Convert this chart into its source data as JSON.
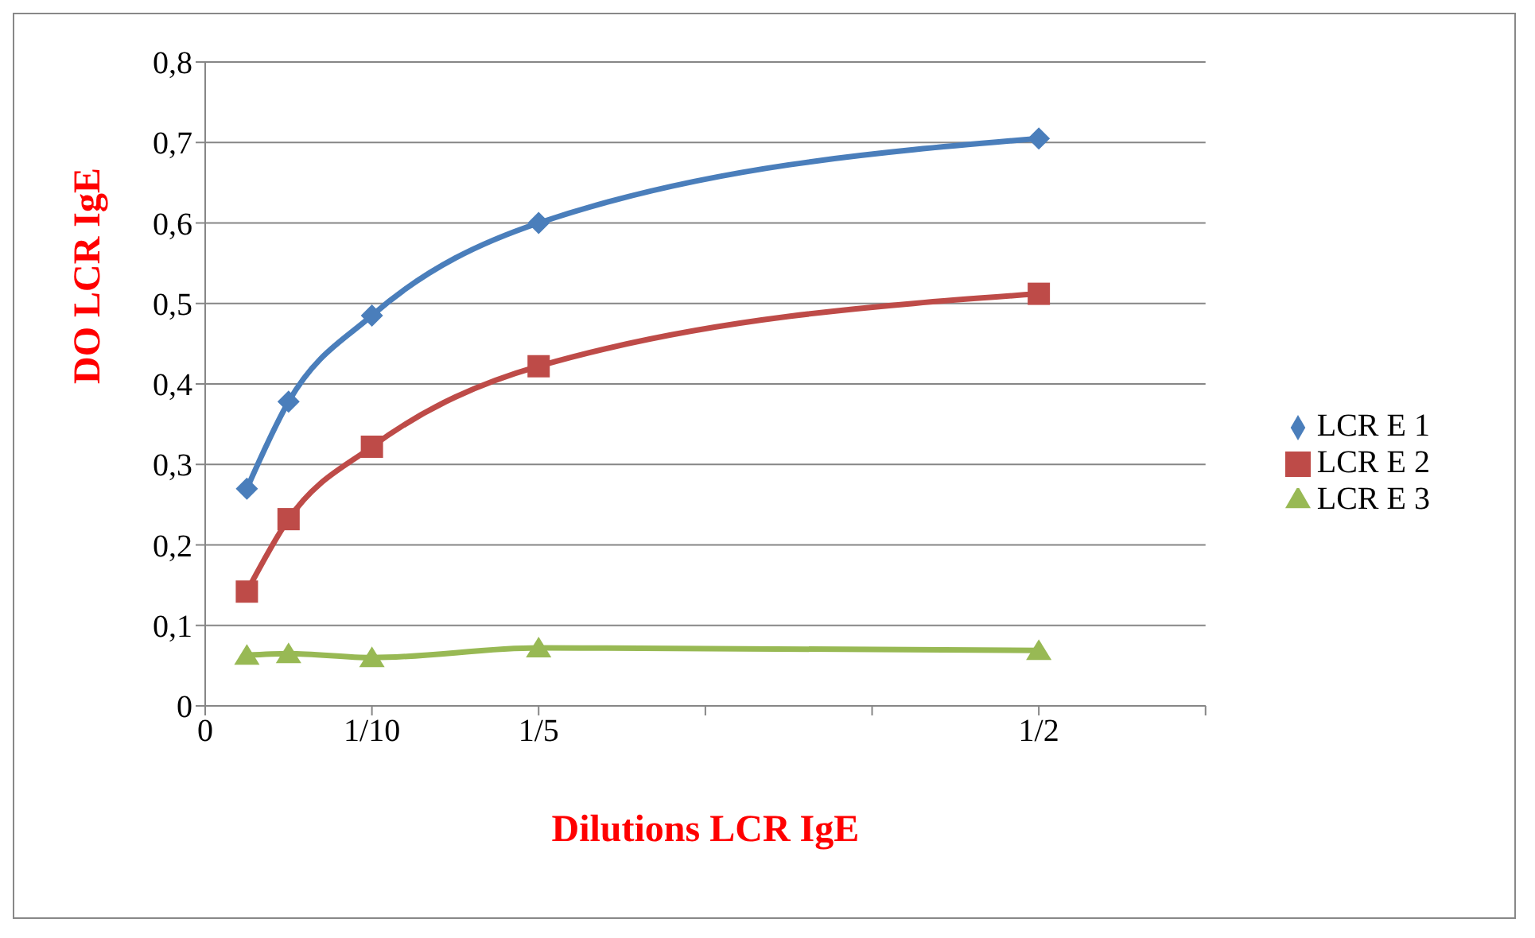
{
  "chart_data": {
    "type": "line",
    "xlabel": "Dilutions LCR IgE",
    "ylabel": "DO  LCR  IgE",
    "x": [
      0.025,
      0.05,
      0.1,
      0.2,
      0.5
    ],
    "series": [
      {
        "name": "LCR E 1",
        "color": "#4a7ebb",
        "marker": "diamond",
        "values": [
          0.27,
          0.378,
          0.485,
          0.6,
          0.705
        ]
      },
      {
        "name": "LCR E 2",
        "color": "#be4b48",
        "marker": "square",
        "values": [
          0.142,
          0.232,
          0.322,
          0.422,
          0.512
        ]
      },
      {
        "name": "LCR E 3",
        "color": "#98b954",
        "marker": "triangle",
        "values": [
          0.063,
          0.065,
          0.06,
          0.072,
          0.069
        ]
      }
    ],
    "xlim": [
      0,
      0.6
    ],
    "xticks": [
      0,
      {
        "value": 0.1,
        "label": "1/10"
      },
      {
        "value": 0.2,
        "label": "1/5"
      },
      {
        "value": 0.3,
        "label": null
      },
      {
        "value": 0.4,
        "label": null
      },
      {
        "value": 0.5,
        "label": "1/2"
      },
      {
        "value": 0.6,
        "label": null
      }
    ],
    "ylim": [
      0,
      0.8
    ],
    "yticks": [
      0,
      {
        "value": 0.1,
        "label": "0,1"
      },
      {
        "value": 0.2,
        "label": "0,2"
      },
      {
        "value": 0.3,
        "label": "0,3"
      },
      {
        "value": 0.4,
        "label": "0,4"
      },
      {
        "value": 0.5,
        "label": "0,5"
      },
      {
        "value": 0.6,
        "label": "0,6"
      },
      {
        "value": 0.7,
        "label": "0,7"
      },
      {
        "value": 0.8,
        "label": "0,8"
      }
    ],
    "grid": "y",
    "legend": "right",
    "line_style": "solid"
  }
}
